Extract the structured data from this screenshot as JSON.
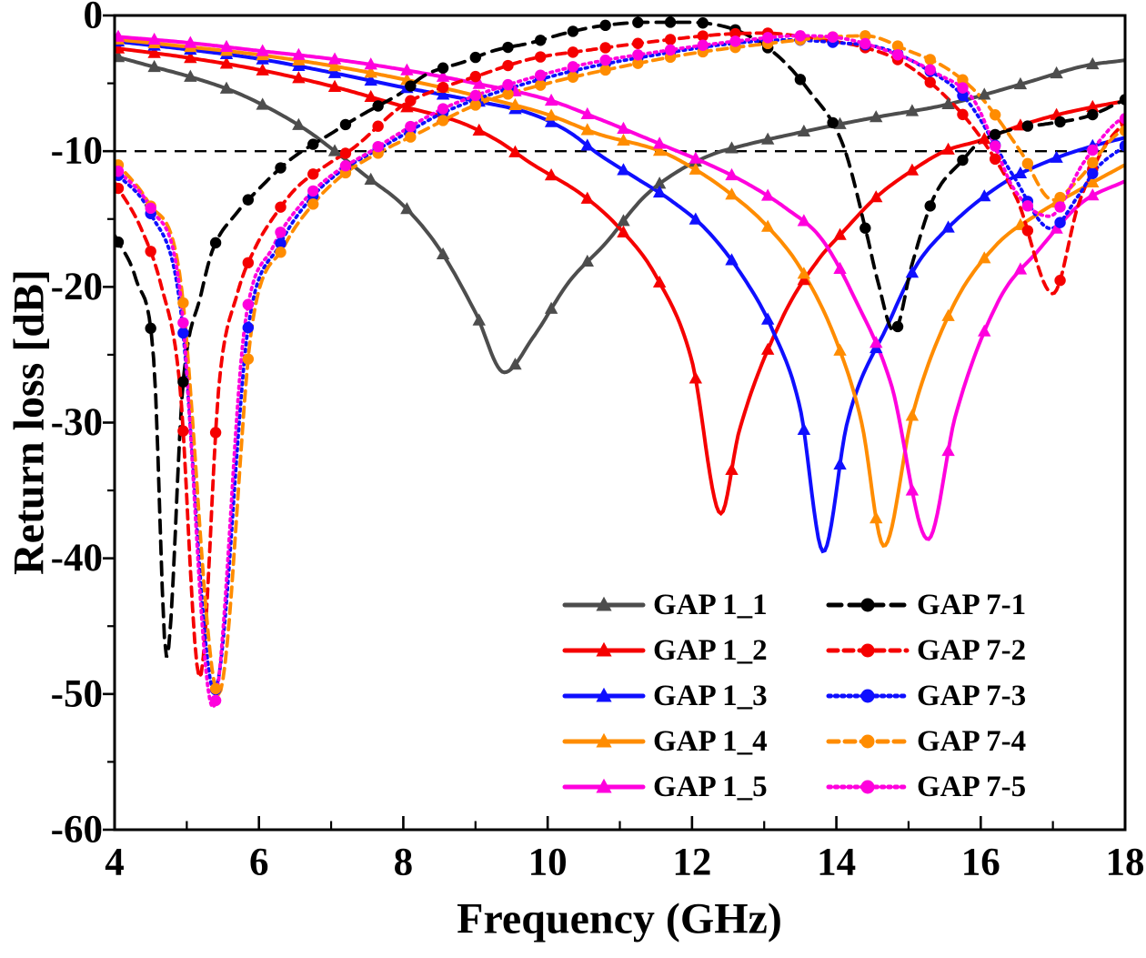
{
  "chart_data": {
    "type": "line",
    "title": "",
    "xlabel": "Frequency (GHz)",
    "ylabel": "Return loss [dB]",
    "xlim": [
      4,
      18
    ],
    "ylim": [
      -60,
      0
    ],
    "xticks_major": [
      4,
      6,
      8,
      10,
      12,
      14,
      16,
      18
    ],
    "xticks_minor": [
      5,
      7,
      9,
      11,
      13,
      15,
      17
    ],
    "yticks_major": [
      0,
      -10,
      -20,
      -30,
      -40,
      -50,
      -60
    ],
    "yticks_minor": [
      -5,
      -15,
      -25,
      -35,
      -45,
      -55
    ],
    "grid": false,
    "legend_position": "inside-bottom-right",
    "reference_line": {
      "y": -10,
      "style": "dashed",
      "color": "#000000"
    },
    "series": [
      {
        "name": "GAP 1_1",
        "color": "#4d4d4d",
        "line": "solid",
        "dash": null,
        "marker": "triangle",
        "marker_step": 0.5,
        "points": [
          [
            4,
            -3.0
          ],
          [
            4.55,
            -3.8
          ],
          [
            5.1,
            -4.6
          ],
          [
            5.65,
            -5.6
          ],
          [
            6.2,
            -7.0
          ],
          [
            6.7,
            -8.6
          ],
          [
            7.05,
            -10.0
          ],
          [
            7.5,
            -11.9
          ],
          [
            8,
            -14.0
          ],
          [
            8.5,
            -17.2
          ],
          [
            9,
            -21.9
          ],
          [
            9.4,
            -26.3
          ],
          [
            9.8,
            -23.7
          ],
          [
            10.3,
            -19.6
          ],
          [
            10.8,
            -16.8
          ],
          [
            11.33,
            -13.4
          ],
          [
            11.8,
            -11.5
          ],
          [
            12.3,
            -10.2
          ],
          [
            12.62,
            -9.7
          ],
          [
            13.6,
            -8.5
          ],
          [
            14.55,
            -7.5
          ],
          [
            15.5,
            -6.6
          ],
          [
            16.6,
            -5.0
          ],
          [
            17.45,
            -3.7
          ],
          [
            18,
            -3.3
          ]
        ]
      },
      {
        "name": "GAP 1_2",
        "color": "#f50000",
        "line": "solid",
        "dash": null,
        "marker": "triangle",
        "marker_step": 0.5,
        "points": [
          [
            4,
            -2.4
          ],
          [
            5,
            -3.1
          ],
          [
            6,
            -4.0
          ],
          [
            7,
            -5.2
          ],
          [
            8,
            -6.7
          ],
          [
            8.8,
            -7.9
          ],
          [
            9.3,
            -9.2
          ],
          [
            9.77,
            -10.9
          ],
          [
            10.5,
            -13.3
          ],
          [
            11,
            -15.7
          ],
          [
            11.5,
            -19.2
          ],
          [
            12,
            -25.5
          ],
          [
            12.4,
            -36.7
          ],
          [
            12.65,
            -30.7
          ],
          [
            13.25,
            -22.3
          ],
          [
            13.75,
            -18.0
          ],
          [
            14.1,
            -15.9
          ],
          [
            14.55,
            -13.4
          ],
          [
            15,
            -11.6
          ],
          [
            15.5,
            -10.0
          ],
          [
            16,
            -9.2
          ],
          [
            16.5,
            -8.2
          ],
          [
            17,
            -7.4
          ],
          [
            17.5,
            -6.8
          ],
          [
            18,
            -6.3
          ]
        ]
      },
      {
        "name": "GAP 1_3",
        "color": "#0f0fff",
        "line": "solid",
        "dash": null,
        "marker": "triangle",
        "marker_step": 0.5,
        "points": [
          [
            4,
            -1.9
          ],
          [
            5,
            -2.5
          ],
          [
            6,
            -3.2
          ],
          [
            7,
            -4.2
          ],
          [
            8,
            -5.3
          ],
          [
            9,
            -6.3
          ],
          [
            9.8,
            -7.3
          ],
          [
            10.3,
            -8.6
          ],
          [
            10.7,
            -10.2
          ],
          [
            11.2,
            -11.9
          ],
          [
            11.7,
            -13.6
          ],
          [
            12.2,
            -15.8
          ],
          [
            12.7,
            -19.2
          ],
          [
            13.1,
            -23.0
          ],
          [
            13.5,
            -29.0
          ],
          [
            13.82,
            -39.5
          ],
          [
            14.15,
            -30.0
          ],
          [
            14.73,
            -22.6
          ],
          [
            15.1,
            -18.5
          ],
          [
            15.5,
            -15.9
          ],
          [
            16.3,
            -12.4
          ],
          [
            17,
            -10.6
          ],
          [
            17.5,
            -9.7
          ],
          [
            18,
            -9.0
          ]
        ]
      },
      {
        "name": "GAP 1_4",
        "color": "#ff8c00",
        "line": "solid",
        "dash": null,
        "marker": "triangle",
        "marker_step": 0.5,
        "points": [
          [
            4,
            -1.75
          ],
          [
            5,
            -2.3
          ],
          [
            6,
            -2.9
          ],
          [
            7,
            -3.7
          ],
          [
            8,
            -4.7
          ],
          [
            9,
            -5.9
          ],
          [
            10,
            -7.3
          ],
          [
            10.68,
            -8.7
          ],
          [
            11.56,
            -10.0
          ],
          [
            12,
            -11.2
          ],
          [
            12.5,
            -13.0
          ],
          [
            13,
            -15.3
          ],
          [
            13.5,
            -18.6
          ],
          [
            14,
            -24.0
          ],
          [
            14.35,
            -30.0
          ],
          [
            14.66,
            -39.1
          ],
          [
            15.05,
            -29.5
          ],
          [
            15.6,
            -21.6
          ],
          [
            16.2,
            -17.0
          ],
          [
            16.8,
            -14.6
          ],
          [
            17.35,
            -12.9
          ],
          [
            18,
            -11.0
          ]
        ]
      },
      {
        "name": "GAP 1_5",
        "color": "#ff00dd",
        "line": "solid",
        "dash": null,
        "marker": "triangle",
        "marker_step": 0.5,
        "points": [
          [
            4,
            -1.55
          ],
          [
            5,
            -2.0
          ],
          [
            6,
            -2.6
          ],
          [
            7,
            -3.2
          ],
          [
            8,
            -4.0
          ],
          [
            9,
            -5.0
          ],
          [
            10,
            -6.2
          ],
          [
            10.7,
            -7.6
          ],
          [
            11.66,
            -9.7
          ],
          [
            12.2,
            -10.9
          ],
          [
            12.7,
            -12.2
          ],
          [
            13.3,
            -14.2
          ],
          [
            13.8,
            -16.5
          ],
          [
            14.25,
            -20.8
          ],
          [
            14.76,
            -27.2
          ],
          [
            15.27,
            -38.6
          ],
          [
            15.65,
            -29.5
          ],
          [
            16.25,
            -21.0
          ],
          [
            16.8,
            -17.3
          ],
          [
            17.4,
            -13.8
          ],
          [
            18,
            -12.2
          ]
        ]
      },
      {
        "name": "GAP 7-1",
        "color": "#000000",
        "line": "dashed",
        "dash": [
          14,
          9
        ],
        "marker": "circle",
        "marker_step": 0.45,
        "points": [
          [
            4,
            -16.2
          ],
          [
            4.3,
            -19.5
          ],
          [
            4.55,
            -26.0
          ],
          [
            4.72,
            -47.3
          ],
          [
            4.95,
            -27.0
          ],
          [
            5.2,
            -20.5
          ],
          [
            5.35,
            -17.4
          ],
          [
            5.7,
            -14.5
          ],
          [
            5.94,
            -13.1
          ],
          [
            6.44,
            -10.6
          ],
          [
            7.0,
            -8.7
          ],
          [
            7.4,
            -7.4
          ],
          [
            8,
            -5.6
          ],
          [
            8.3,
            -4.4
          ],
          [
            8.85,
            -3.4
          ],
          [
            9.25,
            -2.6
          ],
          [
            9.78,
            -2.0
          ],
          [
            10.25,
            -1.3
          ],
          [
            10.7,
            -0.8
          ],
          [
            11.4,
            -0.5
          ],
          [
            11.9,
            -0.5
          ],
          [
            12.62,
            -1.1
          ],
          [
            13.15,
            -2.8
          ],
          [
            13.6,
            -5.4
          ],
          [
            14.1,
            -9.65
          ],
          [
            14.42,
            -16.1
          ],
          [
            14.57,
            -19.5
          ],
          [
            14.8,
            -23.3
          ],
          [
            15.05,
            -18.3
          ],
          [
            15.35,
            -13.4
          ],
          [
            15.76,
            -10.6
          ],
          [
            15.95,
            -9.5
          ],
          [
            16.5,
            -8.3
          ],
          [
            16.9,
            -8.0
          ],
          [
            17.5,
            -7.4
          ],
          [
            18,
            -6.2
          ]
        ]
      },
      {
        "name": "GAP 7-2",
        "color": "#f50000",
        "line": "dashed",
        "dash": [
          10,
          7
        ],
        "marker": "circle",
        "marker_step": 0.45,
        "points": [
          [
            4,
            -12.3
          ],
          [
            4.35,
            -15.5
          ],
          [
            4.64,
            -19.8
          ],
          [
            4.9,
            -27.0
          ],
          [
            5.18,
            -48.8
          ],
          [
            5.45,
            -27.0
          ],
          [
            5.7,
            -20.5
          ],
          [
            5.95,
            -17.1
          ],
          [
            6.25,
            -14.5
          ],
          [
            6.52,
            -12.7
          ],
          [
            7.0,
            -10.8
          ],
          [
            7.3,
            -9.8
          ],
          [
            8,
            -6.6
          ],
          [
            8.5,
            -5.4
          ],
          [
            9,
            -4.5
          ],
          [
            9.77,
            -3.2
          ],
          [
            10.5,
            -2.6
          ],
          [
            11.5,
            -1.9
          ],
          [
            12.4,
            -1.4
          ],
          [
            13.0,
            -1.3
          ],
          [
            13.8,
            -1.8
          ],
          [
            14.35,
            -2.3
          ],
          [
            14.9,
            -3.4
          ],
          [
            15.5,
            -5.9
          ],
          [
            16.0,
            -9.0
          ],
          [
            16.5,
            -13.5
          ],
          [
            17.0,
            -20.5
          ],
          [
            17.35,
            -14.0
          ],
          [
            17.7,
            -9.8
          ],
          [
            18,
            -7.8
          ]
        ]
      },
      {
        "name": "GAP 7-3",
        "color": "#0f0fff",
        "line": "dotted",
        "dash": [
          2.5,
          4.8
        ],
        "marker": "circle",
        "marker_step": 0.45,
        "points": [
          [
            4,
            -11.5
          ],
          [
            4.5,
            -14.6
          ],
          [
            4.9,
            -21.0
          ],
          [
            5.38,
            -49.8
          ],
          [
            5.85,
            -23.0
          ],
          [
            6.3,
            -16.8
          ],
          [
            6.7,
            -13.6
          ],
          [
            7.1,
            -11.6
          ],
          [
            7.6,
            -10.0
          ],
          [
            8,
            -8.8
          ],
          [
            8.5,
            -7.3
          ],
          [
            9,
            -6.2
          ],
          [
            9.77,
            -4.9
          ],
          [
            10.5,
            -3.9
          ],
          [
            11.5,
            -2.9
          ],
          [
            12.5,
            -2.1
          ],
          [
            13.3,
            -1.8
          ],
          [
            14.0,
            -2.0
          ],
          [
            14.63,
            -2.4
          ],
          [
            15.2,
            -3.8
          ],
          [
            15.8,
            -6.2
          ],
          [
            16.45,
            -11.8
          ],
          [
            16.97,
            -15.7
          ],
          [
            17.35,
            -13.3
          ],
          [
            17.6,
            -11.3
          ],
          [
            18,
            -9.6
          ]
        ]
      },
      {
        "name": "GAP 7-4",
        "color": "#ff8c00",
        "line": "dashed",
        "dash": [
          11,
          7
        ],
        "marker": "circle",
        "marker_step": 0.45,
        "points": [
          [
            4,
            -10.7
          ],
          [
            4.47,
            -13.8
          ],
          [
            4.9,
            -19.0
          ],
          [
            5.44,
            -50.0
          ],
          [
            5.9,
            -23.0
          ],
          [
            6.35,
            -17.0
          ],
          [
            6.75,
            -13.9
          ],
          [
            7.15,
            -11.8
          ],
          [
            7.7,
            -10.0
          ],
          [
            8.2,
            -8.7
          ],
          [
            9,
            -6.6
          ],
          [
            10,
            -5.0
          ],
          [
            11,
            -3.8
          ],
          [
            12,
            -2.8
          ],
          [
            13,
            -2.1
          ],
          [
            13.9,
            -1.6
          ],
          [
            14.4,
            -1.5
          ],
          [
            15.0,
            -2.6
          ],
          [
            15.53,
            -3.9
          ],
          [
            16.0,
            -6.0
          ],
          [
            16.55,
            -10.0
          ],
          [
            17.0,
            -13.6
          ],
          [
            17.35,
            -12.1
          ],
          [
            17.9,
            -8.7
          ],
          [
            18,
            -8.5
          ]
        ]
      },
      {
        "name": "GAP 7-5",
        "color": "#ff00dd",
        "line": "dotted",
        "dash": [
          2.5,
          4.8
        ],
        "marker": "circle",
        "marker_step": 0.45,
        "points": [
          [
            4,
            -11.2
          ],
          [
            4.5,
            -14.2
          ],
          [
            4.9,
            -20.0
          ],
          [
            5.36,
            -51.0
          ],
          [
            5.8,
            -23.0
          ],
          [
            6.2,
            -17.0
          ],
          [
            6.6,
            -13.8
          ],
          [
            7.0,
            -11.8
          ],
          [
            7.55,
            -10.0
          ],
          [
            8,
            -8.5
          ],
          [
            8.5,
            -7.0
          ],
          [
            9,
            -5.9
          ],
          [
            9.77,
            -4.6
          ],
          [
            10.5,
            -3.6
          ],
          [
            11.5,
            -2.7
          ],
          [
            12.6,
            -1.9
          ],
          [
            13.5,
            -1.5
          ],
          [
            14.1,
            -1.7
          ],
          [
            14.8,
            -2.8
          ],
          [
            15.4,
            -4.3
          ],
          [
            15.9,
            -6.2
          ],
          [
            16.15,
            -9.0
          ],
          [
            16.45,
            -12.7
          ],
          [
            16.95,
            -14.8
          ],
          [
            17.43,
            -10.8
          ],
          [
            17.9,
            -7.8
          ],
          [
            18,
            -7.6
          ]
        ]
      }
    ]
  }
}
